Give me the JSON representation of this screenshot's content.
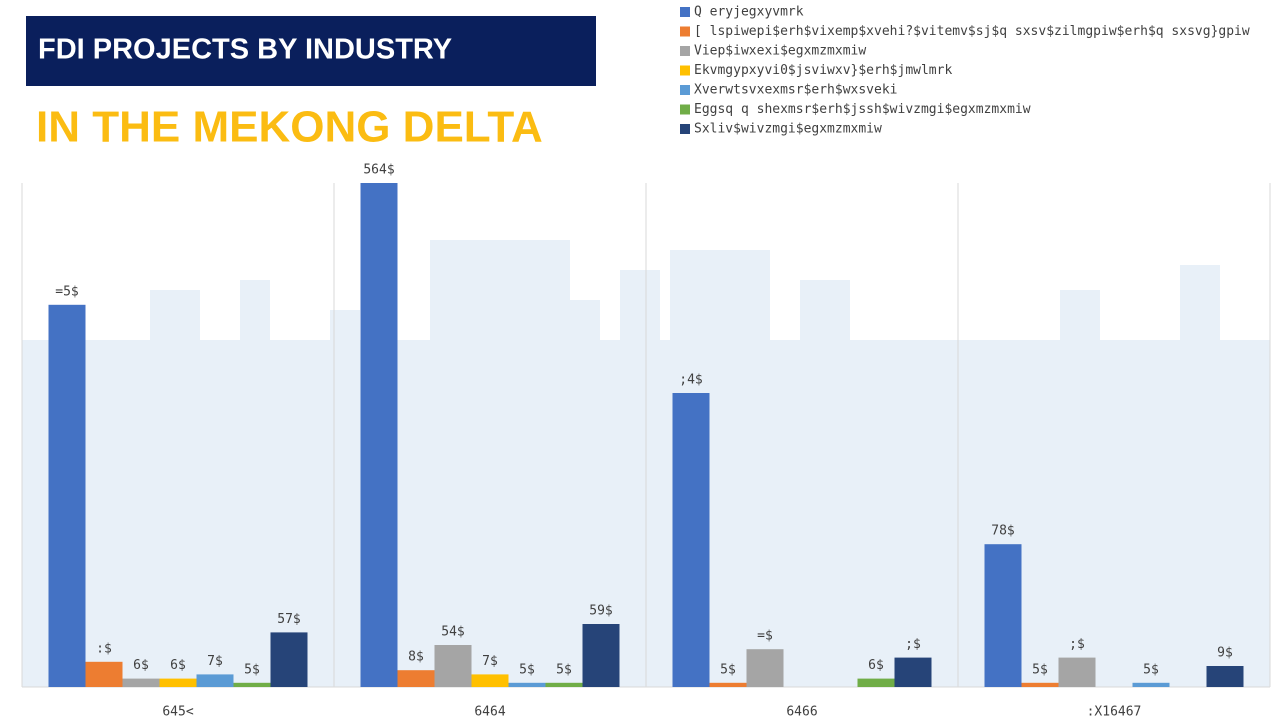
{
  "header": {
    "title": "FDI PROJECTS BY INDUSTRY",
    "subtitle": "IN THE MEKONG DELTA"
  },
  "chart_data": {
    "type": "bar",
    "categories": [
      "645<",
      "6464",
      "6466",
      ":X16467"
    ],
    "ylim": [
      0,
      120
    ],
    "series": [
      {
        "name": "Q eryjegxyvmrk",
        "color": "#4472c4",
        "values": [
          91,
          120,
          70,
          34
        ],
        "value_labels": [
          "=5$",
          "564$",
          ";4$",
          "78$"
        ]
      },
      {
        "name": "[ lspiwepi$erh$vixemp$xvehi?$vitemv$sj$q sxsv$zilmgpiw$erh$q sxsvg}gpiw",
        "color": "#ed7d31",
        "values": [
          6,
          4,
          1,
          1
        ],
        "value_labels": [
          ":$",
          "8$",
          "5$",
          "5$"
        ]
      },
      {
        "name": "Viep$iwxexi$egxmzmxmiw",
        "color": "#a5a5a5",
        "values": [
          2,
          10,
          9,
          7
        ],
        "value_labels": [
          "6$",
          "54$",
          "=$",
          ";$"
        ]
      },
      {
        "name": "Ekvmgypxyvi0$jsviwxv}$erh$jmwlmrk",
        "color": "#ffc000",
        "values": [
          2,
          3,
          null,
          null
        ],
        "value_labels": [
          "6$",
          "7$",
          null,
          null
        ]
      },
      {
        "name": "Xverwtsvxexmsr$erh$wxsveki",
        "color": "#5b9bd5",
        "values": [
          3,
          1,
          null,
          1
        ],
        "value_labels": [
          "7$",
          "5$",
          null,
          "5$"
        ]
      },
      {
        "name": "Eggsq q shexmsr$erh$jssh$wivzmgi$egxmzmxmiw",
        "color": "#70ad47",
        "values": [
          1,
          1,
          2,
          null
        ],
        "value_labels": [
          "5$",
          "5$",
          "6$",
          null
        ]
      },
      {
        "name": "Sxliv$wivzmgi$egxmzmxmiw",
        "color": "#264478",
        "values": [
          13,
          15,
          7,
          5
        ],
        "value_labels": [
          "57$",
          "59$",
          ";$",
          "9$"
        ]
      }
    ]
  }
}
